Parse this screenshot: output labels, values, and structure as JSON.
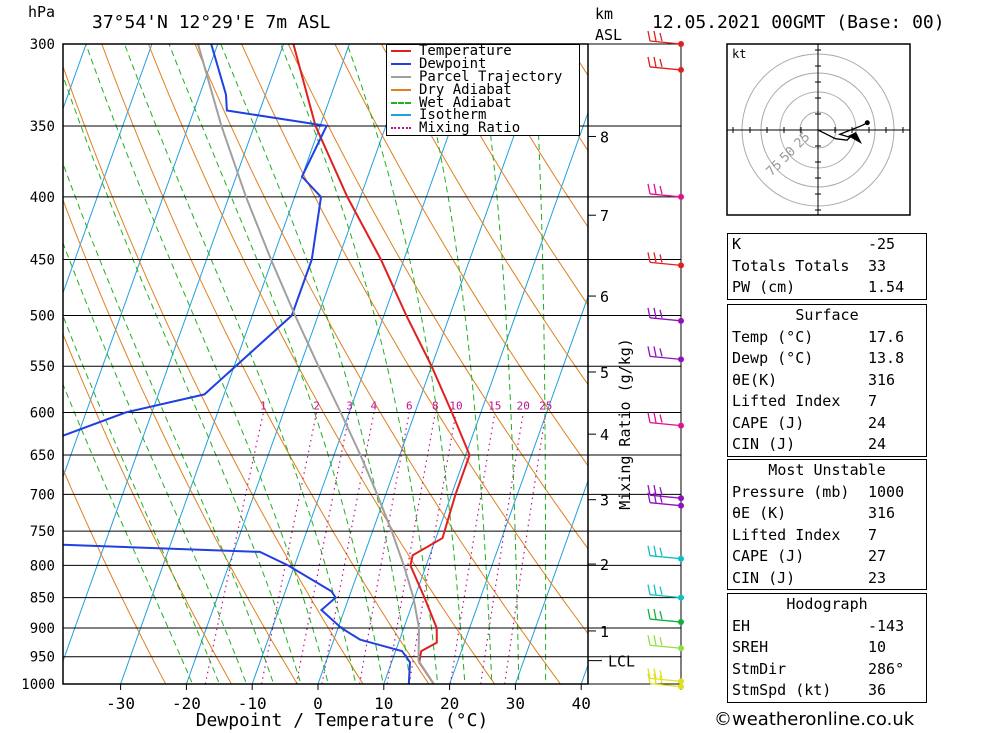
{
  "header": {
    "hpa_unit": "hPa",
    "location": "37°54'N  12°29'E  7m  ASL",
    "km_unit": "km",
    "asl_unit": "ASL",
    "datetime": "12.05.2021  00GMT  (Base: 00)"
  },
  "legend": [
    {
      "label": "Temperature",
      "color": "#e02020",
      "style": "solid"
    },
    {
      "label": "Dewpoint",
      "color": "#2040e0",
      "style": "solid"
    },
    {
      "label": "Parcel Trajectory",
      "color": "#a0a0a0",
      "style": "solid"
    },
    {
      "label": "Dry Adiabat",
      "color": "#e08020",
      "style": "solid"
    },
    {
      "label": "Wet Adiabat",
      "color": "#20b020",
      "style": "dashed"
    },
    {
      "label": "Isotherm",
      "color": "#20a0e0",
      "style": "solid"
    },
    {
      "label": "Mixing Ratio",
      "color": "#c01090",
      "style": "dotted"
    }
  ],
  "chart_data": {
    "type": "line",
    "title": "37°54'N  12°29'E  7m  ASL",
    "xlabel": "Dewpoint / Temperature (°C)",
    "ylabel": "hPa",
    "xlim": [
      -40,
      40
    ],
    "x_ticks": [
      -30,
      -20,
      -10,
      0,
      10,
      20,
      30,
      40
    ],
    "pressure_levels": [
      300,
      350,
      400,
      450,
      500,
      550,
      600,
      650,
      700,
      750,
      800,
      850,
      900,
      950,
      1000
    ],
    "height_km_ticks": [
      {
        "label": "8",
        "p": 357
      },
      {
        "label": "7",
        "p": 414
      },
      {
        "label": "6",
        "p": 482
      },
      {
        "label": "5",
        "p": 556
      },
      {
        "label": "4",
        "p": 625
      },
      {
        "label": "3",
        "p": 707
      },
      {
        "label": "2",
        "p": 798
      },
      {
        "label": "1",
        "p": 905
      }
    ],
    "lcl_label": "LCL",
    "lcl_p": 957,
    "mixing_ratio_label": "Mixing Ratio (g/kg)",
    "mixing_ratio_values": [
      "1",
      "2",
      "3",
      "4",
      "6",
      "8",
      "10",
      "15",
      "20",
      "25"
    ],
    "series": [
      {
        "name": "Temperature",
        "points": [
          [
            1000,
            17.6
          ],
          [
            960,
            14.2
          ],
          [
            940,
            13.9
          ],
          [
            925,
            15.8
          ],
          [
            900,
            15.0
          ],
          [
            850,
            11.5
          ],
          [
            800,
            7.6
          ],
          [
            785,
            7.4
          ],
          [
            760,
            11.0
          ],
          [
            700,
            10.6
          ],
          [
            650,
            10.6
          ],
          [
            600,
            5.6
          ],
          [
            550,
            0.0
          ],
          [
            500,
            -6.6
          ],
          [
            450,
            -13.5
          ],
          [
            400,
            -22.0
          ],
          [
            350,
            -30.7
          ],
          [
            300,
            -38.5
          ]
        ]
      },
      {
        "name": "Dewpoint",
        "points": [
          [
            1000,
            13.8
          ],
          [
            960,
            12.8
          ],
          [
            940,
            11.0
          ],
          [
            920,
            4.0
          ],
          [
            900,
            0.5
          ],
          [
            870,
            -3.5
          ],
          [
            850,
            -2.0
          ],
          [
            840,
            -3.0
          ],
          [
            800,
            -11.0
          ],
          [
            780,
            -16.0
          ],
          [
            765,
            -60.0
          ],
          [
            700,
            -60.0
          ],
          [
            700,
            -62.5
          ],
          [
            660,
            -62.0
          ],
          [
            600,
            -44.0
          ],
          [
            580,
            -33.0
          ],
          [
            500,
            -24.0
          ],
          [
            450,
            -24.0
          ],
          [
            400,
            -26.0
          ],
          [
            385,
            -30.0
          ],
          [
            350,
            -29.0
          ],
          [
            340,
            -45.0
          ],
          [
            330,
            -46.0
          ],
          [
            300,
            -51.0
          ]
        ]
      },
      {
        "name": "Parcel Trajectory",
        "points": [
          [
            1000,
            17.6
          ],
          [
            957,
            14.0
          ],
          [
            900,
            12.3
          ],
          [
            850,
            9.8
          ],
          [
            800,
            6.6
          ],
          [
            750,
            2.9
          ],
          [
            700,
            -1.3
          ],
          [
            650,
            -6.0
          ],
          [
            600,
            -11.3
          ],
          [
            550,
            -17.2
          ],
          [
            500,
            -23.5
          ],
          [
            450,
            -30.2
          ],
          [
            400,
            -37.4
          ],
          [
            350,
            -45.0
          ],
          [
            300,
            -53.0
          ]
        ]
      }
    ],
    "wind_barbs": [
      {
        "p": 300,
        "color": "#e02020"
      },
      {
        "p": 315,
        "color": "#e02020"
      },
      {
        "p": 400,
        "color": "#e0108f"
      },
      {
        "p": 455,
        "color": "#e02020"
      },
      {
        "p": 505,
        "color": "#9010c0"
      },
      {
        "p": 543,
        "color": "#9010c0"
      },
      {
        "p": 615,
        "color": "#e0108f"
      },
      {
        "p": 705,
        "color": "#9010c0"
      },
      {
        "p": 715,
        "color": "#9010c0"
      },
      {
        "p": 790,
        "color": "#10c0c0"
      },
      {
        "p": 850,
        "color": "#10c0c0"
      },
      {
        "p": 890,
        "color": "#10b040"
      },
      {
        "p": 935,
        "color": "#90e040"
      },
      {
        "p": 995,
        "color": "#e0e020"
      },
      {
        "p": 1005,
        "color": "#e0e020"
      }
    ],
    "hodograph": {
      "unit_label": "kt",
      "ring_labels": [
        "25",
        "50",
        "75"
      ],
      "trace": [
        [
          0,
          0
        ],
        [
          6,
          -3
        ],
        [
          12,
          -6
        ],
        [
          20,
          -7
        ],
        [
          22,
          -5
        ],
        [
          15,
          -3
        ],
        [
          30,
          3
        ],
        [
          34,
          5
        ]
      ]
    }
  },
  "stats": {
    "general": [
      {
        "label": "K",
        "value": "-25"
      },
      {
        "label": "Totals Totals",
        "value": "33"
      },
      {
        "label": "PW (cm)",
        "value": "1.54"
      }
    ],
    "surface_title": "Surface",
    "surface": [
      {
        "label": "Temp (°C)",
        "value": "17.6"
      },
      {
        "label": "Dewp (°C)",
        "value": "13.8"
      },
      {
        "label": "θE(K)",
        "value": "316"
      },
      {
        "label": "Lifted Index",
        "value": "7"
      },
      {
        "label": "CAPE (J)",
        "value": "24"
      },
      {
        "label": "CIN (J)",
        "value": "24"
      }
    ],
    "unstable_title": "Most Unstable",
    "unstable": [
      {
        "label": "Pressure (mb)",
        "value": "1000"
      },
      {
        "label": "θE (K)",
        "value": "316"
      },
      {
        "label": "Lifted Index",
        "value": "7"
      },
      {
        "label": "CAPE (J)",
        "value": "27"
      },
      {
        "label": "CIN (J)",
        "value": "23"
      }
    ],
    "hodo_title": "Hodograph",
    "hodo": [
      {
        "label": "EH",
        "value": "-143"
      },
      {
        "label": "SREH",
        "value": "10"
      },
      {
        "label": "StmDir",
        "value": "286°"
      },
      {
        "label": "StmSpd (kt)",
        "value": "36"
      }
    ]
  },
  "footer": {
    "copyright": "©weatheronline.co.uk"
  }
}
